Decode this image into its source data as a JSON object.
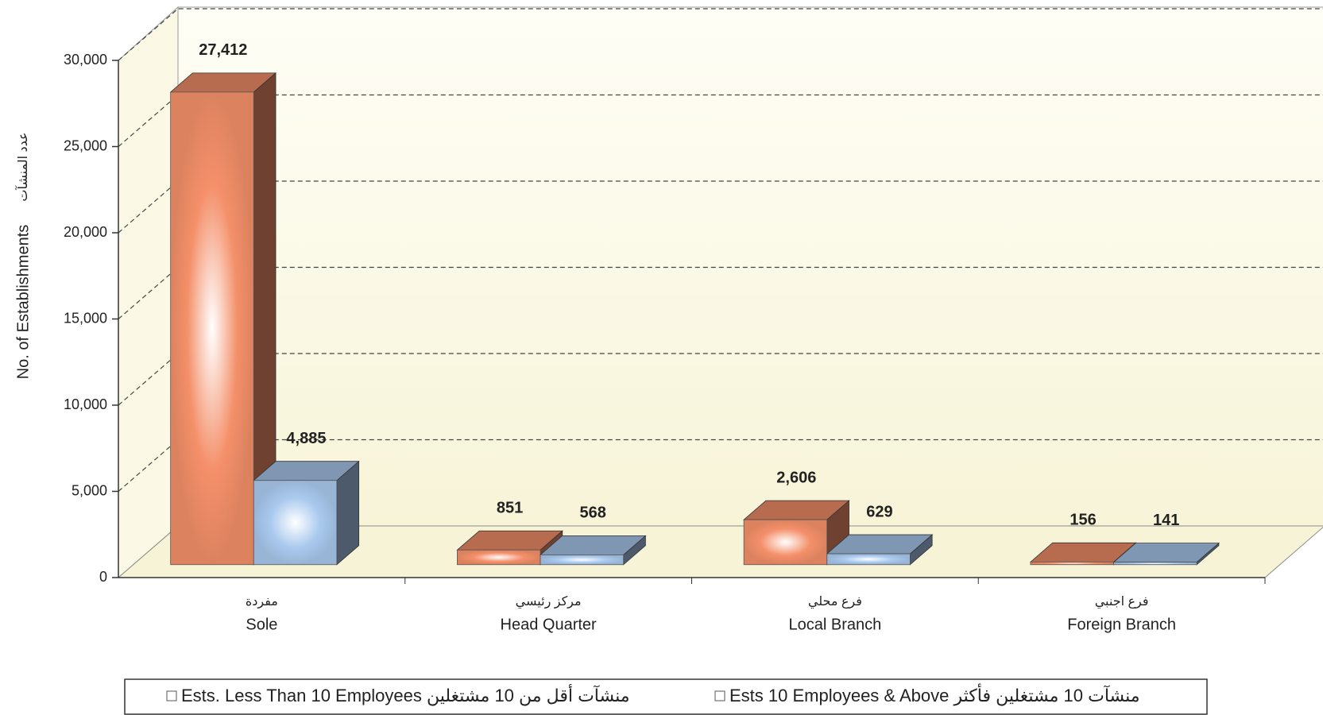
{
  "chart_data": {
    "type": "bar3d",
    "y_label": "No. of Establishments",
    "y_label_ar": "عدد المنشآت",
    "categories": [
      "Sole",
      "Head Quarter",
      "Local Branch",
      "Foreign Branch"
    ],
    "categories_ar": [
      "مفردة",
      "مركز رئيسي",
      "فرع محلي",
      "فرع اجنبي"
    ],
    "series": [
      {
        "name": "Ests. Less Than 10 Employees منشآت أقل من 10 مشتغلين",
        "color": "#f4906a",
        "values": [
          27412,
          851,
          2606,
          156
        ],
        "value_labels": [
          "27,412",
          "851",
          "2,606",
          "156"
        ]
      },
      {
        "name": "Ests 10 Employees & Above منشآت 10 مشتغلين فأكثر",
        "color": "#a9c9ee",
        "values": [
          4885,
          568,
          629,
          141
        ],
        "value_labels": [
          "4,885",
          "568",
          "629",
          "141"
        ]
      }
    ],
    "ylim": [
      0,
      30000
    ],
    "yticks": [
      0,
      {
        "value": 5000,
        "label": "5,000"
      },
      {
        "value": 10000,
        "label": "10,000"
      },
      {
        "value": 15000,
        "label": "15,000"
      },
      {
        "value": 20000,
        "label": "20,000"
      },
      {
        "value": 25000,
        "label": "25,000"
      },
      {
        "value": 30000,
        "label": "30,000"
      }
    ],
    "grid": true
  }
}
